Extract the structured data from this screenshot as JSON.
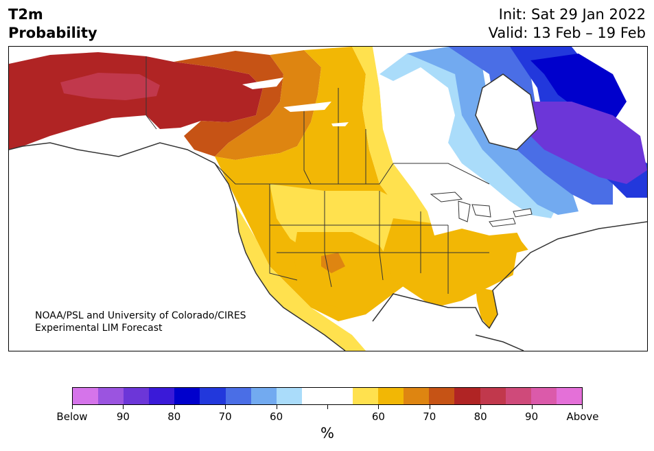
{
  "header": {
    "title_line1": "T2m",
    "title_line2": "Probability",
    "init_text": "Init: Sat 29 Jan 2022",
    "valid_text": "Valid: 13 Feb – 19 Feb"
  },
  "map": {
    "credit_line1": "NOAA/PSL and University of Colorado/CIRES",
    "credit_line2": "Experimental LIM Forecast"
  },
  "colorbar": {
    "colors": [
      "#d574ea",
      "#9b54e0",
      "#6c36d8",
      "#3a1ad8",
      "#0000cc",
      "#2238dc",
      "#4a6ee6",
      "#72aaf0",
      "#aadcfa",
      "#ffffff",
      "#ffffff",
      "#ffe14e",
      "#f2b705",
      "#de8511",
      "#c65315",
      "#b02424",
      "#c1384c",
      "#cf4a7a",
      "#db5aaa",
      "#e470d8"
    ],
    "tick_labels": [
      "Below",
      "90",
      "80",
      "70",
      "60",
      "",
      "60",
      "70",
      "80",
      "90",
      "Above"
    ],
    "label": "%"
  },
  "palette": {
    "ocean": "#ffffff",
    "border": "#333333"
  }
}
